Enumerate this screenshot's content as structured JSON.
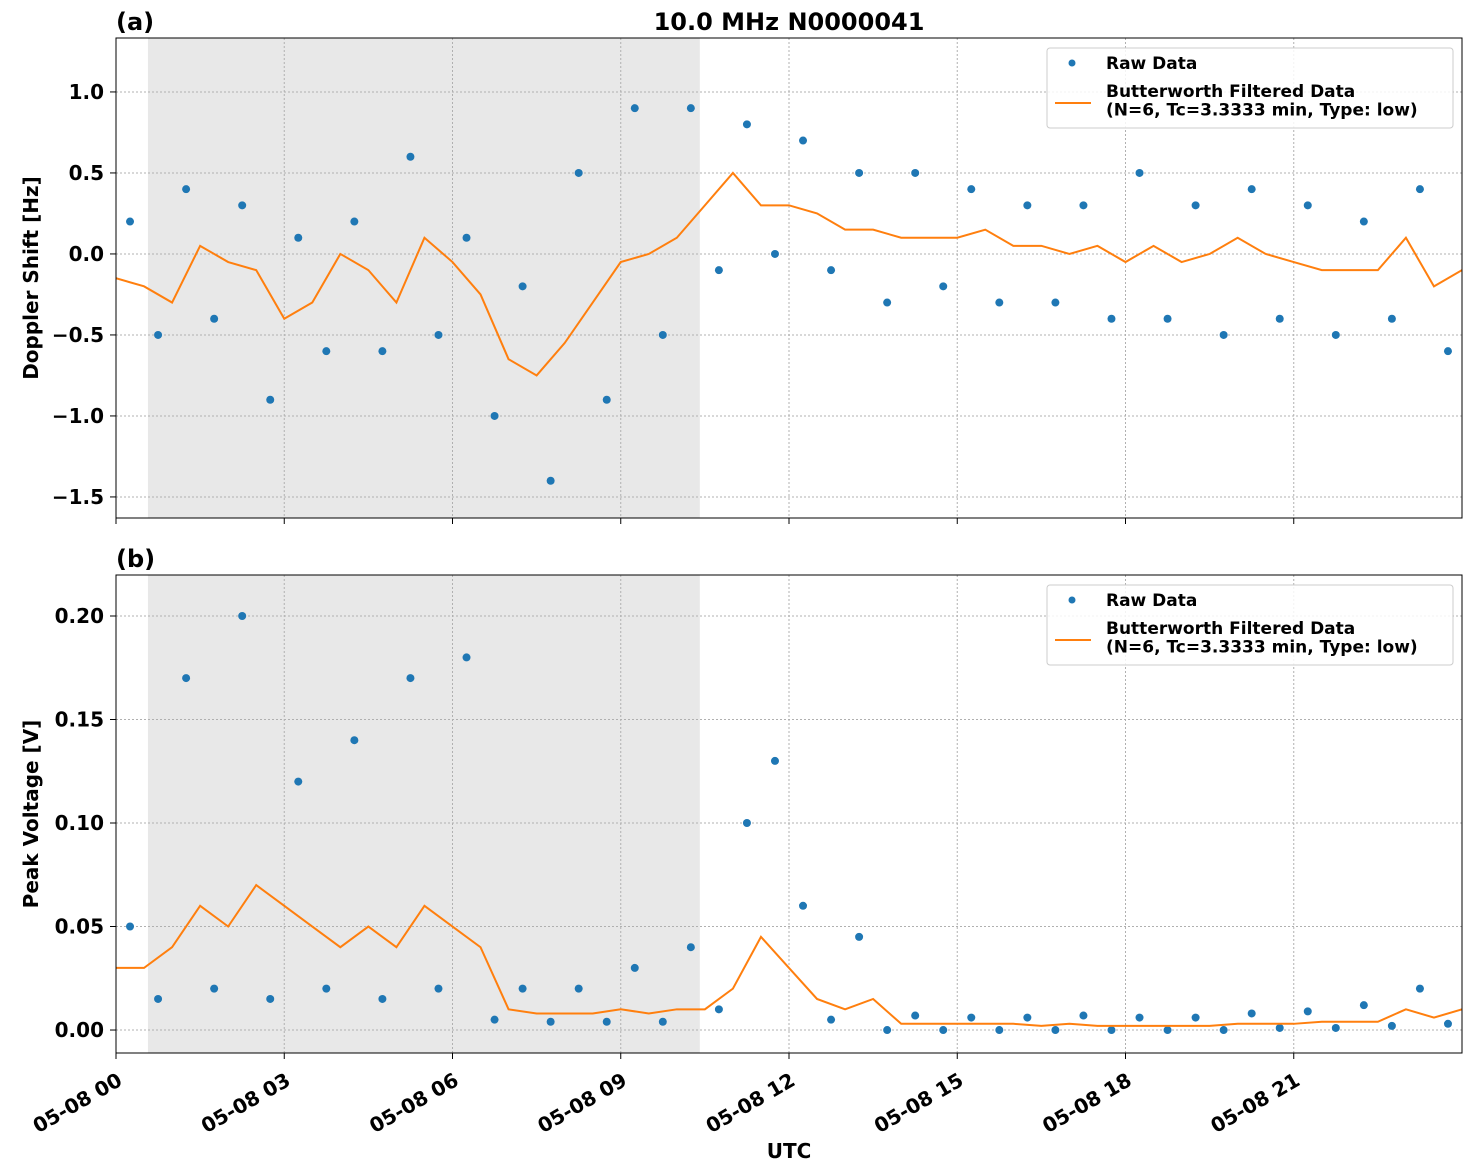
{
  "chart_data": [
    {
      "type": "scatter",
      "panel_label": "(a)",
      "title": "10.0 MHz N0000041",
      "ylabel": "Doppler Shift [Hz]",
      "xlim": [
        0,
        24
      ],
      "ylim": [
        -1.63,
        1.333
      ],
      "xticks": [
        0,
        3,
        6,
        9,
        12,
        15,
        18,
        21
      ],
      "yticks": [
        {
          "value": -1.5,
          "label": "−1.5"
        },
        {
          "value": -1.0,
          "label": "−1.0"
        },
        {
          "value": -0.5,
          "label": "−0.5"
        },
        {
          "value": 0.0,
          "label": "0.0"
        },
        {
          "value": 0.5,
          "label": "0.5"
        },
        {
          "value": 1.0,
          "label": "1.0"
        }
      ],
      "grid": true,
      "legend": "upper right",
      "shade_xlim": [
        0.57,
        10.41
      ],
      "series": [
        {
          "name": "Raw Data",
          "type": "scatter",
          "color": "#1f77b4",
          "x": [
            0.25,
            0.75,
            1.25,
            1.75,
            2.25,
            2.75,
            3.25,
            3.75,
            4.25,
            4.75,
            5.25,
            5.75,
            6.25,
            6.75,
            7.25,
            7.75,
            8.25,
            8.75,
            9.25,
            9.75,
            10.25,
            10.75,
            11.25,
            11.75,
            12.25,
            12.75,
            13.25,
            13.75,
            14.25,
            14.75,
            15.25,
            15.75,
            16.25,
            16.75,
            17.25,
            17.75,
            18.25,
            18.75,
            19.25,
            19.75,
            20.25,
            20.75,
            21.25,
            21.75,
            22.25,
            22.75,
            23.25,
            23.75
          ],
          "values": [
            0.2,
            -0.5,
            0.4,
            -0.4,
            0.3,
            -0.9,
            0.1,
            -0.6,
            0.2,
            -0.6,
            0.6,
            -0.5,
            0.1,
            -1.0,
            -0.2,
            -1.4,
            0.5,
            -0.9,
            0.9,
            -0.5,
            0.9,
            -0.1,
            0.8,
            0.0,
            0.7,
            -0.1,
            0.5,
            -0.3,
            0.5,
            -0.2,
            0.4,
            -0.3,
            0.3,
            -0.3,
            0.3,
            -0.4,
            0.5,
            -0.4,
            0.3,
            -0.5,
            0.4,
            -0.4,
            0.3,
            -0.5,
            0.2,
            -0.4,
            0.4,
            -0.6
          ]
        },
        {
          "name": "Butterworth Filtered Data\n(N=6, Tc=3.3333 min, Type: low)",
          "type": "line",
          "color": "#ff7f0e",
          "x": [
            0,
            0.5,
            1,
            1.5,
            2,
            2.5,
            3,
            3.5,
            4,
            4.5,
            5,
            5.5,
            6,
            6.5,
            7,
            7.5,
            8,
            8.5,
            9,
            9.5,
            10,
            10.5,
            11,
            11.5,
            12,
            12.5,
            13,
            13.5,
            14,
            14.5,
            15,
            15.5,
            16,
            16.5,
            17,
            17.5,
            18,
            18.5,
            19,
            19.5,
            20,
            20.5,
            21,
            21.5,
            22,
            22.5,
            23,
            23.5,
            24
          ],
          "values": [
            -0.15,
            -0.2,
            -0.3,
            0.05,
            -0.05,
            -0.1,
            -0.4,
            -0.3,
            0.0,
            -0.1,
            -0.3,
            0.1,
            -0.05,
            -0.25,
            -0.65,
            -0.75,
            -0.55,
            -0.3,
            -0.05,
            0.0,
            0.1,
            0.3,
            0.5,
            0.3,
            0.3,
            0.25,
            0.15,
            0.15,
            0.1,
            0.1,
            0.1,
            0.15,
            0.05,
            0.05,
            0.0,
            0.05,
            -0.05,
            0.05,
            -0.05,
            0.0,
            0.1,
            0.0,
            -0.05,
            -0.1,
            -0.1,
            -0.1,
            0.1,
            -0.2,
            -0.1
          ]
        }
      ]
    },
    {
      "type": "scatter",
      "panel_label": "(b)",
      "ylabel": "Peak Voltage [V]",
      "xlabel": "UTC",
      "xlim": [
        0,
        24
      ],
      "ylim": [
        -0.0111,
        0.2198
      ],
      "xticks": [
        {
          "value": 0,
          "label": "05-08 00"
        },
        {
          "value": 3,
          "label": "05-08 03"
        },
        {
          "value": 6,
          "label": "05-08 06"
        },
        {
          "value": 9,
          "label": "05-08 09"
        },
        {
          "value": 12,
          "label": "05-08 12"
        },
        {
          "value": 15,
          "label": "05-08 15"
        },
        {
          "value": 18,
          "label": "05-08 18"
        },
        {
          "value": 21,
          "label": "05-08 21"
        }
      ],
      "yticks": [
        {
          "value": 0.0,
          "label": "0.00"
        },
        {
          "value": 0.05,
          "label": "0.05"
        },
        {
          "value": 0.1,
          "label": "0.10"
        },
        {
          "value": 0.15,
          "label": "0.15"
        },
        {
          "value": 0.2,
          "label": "0.20"
        }
      ],
      "grid": true,
      "legend": "upper right",
      "shade_xlim": [
        0.57,
        10.41
      ],
      "series": [
        {
          "name": "Raw Data",
          "type": "scatter",
          "color": "#1f77b4",
          "x": [
            0.25,
            0.75,
            1.25,
            1.75,
            2.25,
            2.75,
            3.25,
            3.75,
            4.25,
            4.75,
            5.25,
            5.75,
            6.25,
            6.75,
            7.25,
            7.75,
            8.25,
            8.75,
            9.25,
            9.75,
            10.25,
            10.75,
            11.25,
            11.75,
            12.25,
            12.75,
            13.25,
            13.75,
            14.25,
            14.75,
            15.25,
            15.75,
            16.25,
            16.75,
            17.25,
            17.75,
            18.25,
            18.75,
            19.25,
            19.75,
            20.25,
            20.75,
            21.25,
            21.75,
            22.25,
            22.75,
            23.25,
            23.75
          ],
          "values": [
            0.05,
            0.015,
            0.17,
            0.02,
            0.2,
            0.015,
            0.12,
            0.02,
            0.14,
            0.015,
            0.17,
            0.02,
            0.18,
            0.005,
            0.02,
            0.004,
            0.02,
            0.004,
            0.03,
            0.004,
            0.04,
            0.01,
            0.1,
            0.13,
            0.06,
            0.005,
            0.045,
            0.0,
            0.007,
            0.0,
            0.006,
            0.0,
            0.006,
            0.0,
            0.007,
            0.0,
            0.006,
            0.0,
            0.006,
            0.0,
            0.008,
            0.001,
            0.009,
            0.001,
            0.012,
            0.002,
            0.02,
            0.003
          ]
        },
        {
          "name": "Butterworth Filtered Data\n(N=6, Tc=3.3333 min, Type: low)",
          "type": "line",
          "color": "#ff7f0e",
          "x": [
            0,
            0.5,
            1,
            1.5,
            2,
            2.5,
            3,
            3.5,
            4,
            4.5,
            5,
            5.5,
            6,
            6.5,
            7,
            7.5,
            8,
            8.5,
            9,
            9.5,
            10,
            10.5,
            11,
            11.5,
            12,
            12.5,
            13,
            13.5,
            14,
            14.5,
            15,
            15.5,
            16,
            16.5,
            17,
            17.5,
            18,
            18.5,
            19,
            19.5,
            20,
            20.5,
            21,
            21.5,
            22,
            22.5,
            23,
            23.5,
            24
          ],
          "values": [
            0.03,
            0.03,
            0.04,
            0.06,
            0.05,
            0.07,
            0.06,
            0.05,
            0.04,
            0.05,
            0.04,
            0.06,
            0.05,
            0.04,
            0.01,
            0.008,
            0.008,
            0.008,
            0.01,
            0.008,
            0.01,
            0.01,
            0.02,
            0.045,
            0.03,
            0.015,
            0.01,
            0.015,
            0.003,
            0.003,
            0.003,
            0.003,
            0.003,
            0.002,
            0.003,
            0.002,
            0.002,
            0.002,
            0.002,
            0.002,
            0.003,
            0.003,
            0.003,
            0.004,
            0.004,
            0.004,
            0.01,
            0.006,
            0.01
          ]
        }
      ]
    }
  ]
}
